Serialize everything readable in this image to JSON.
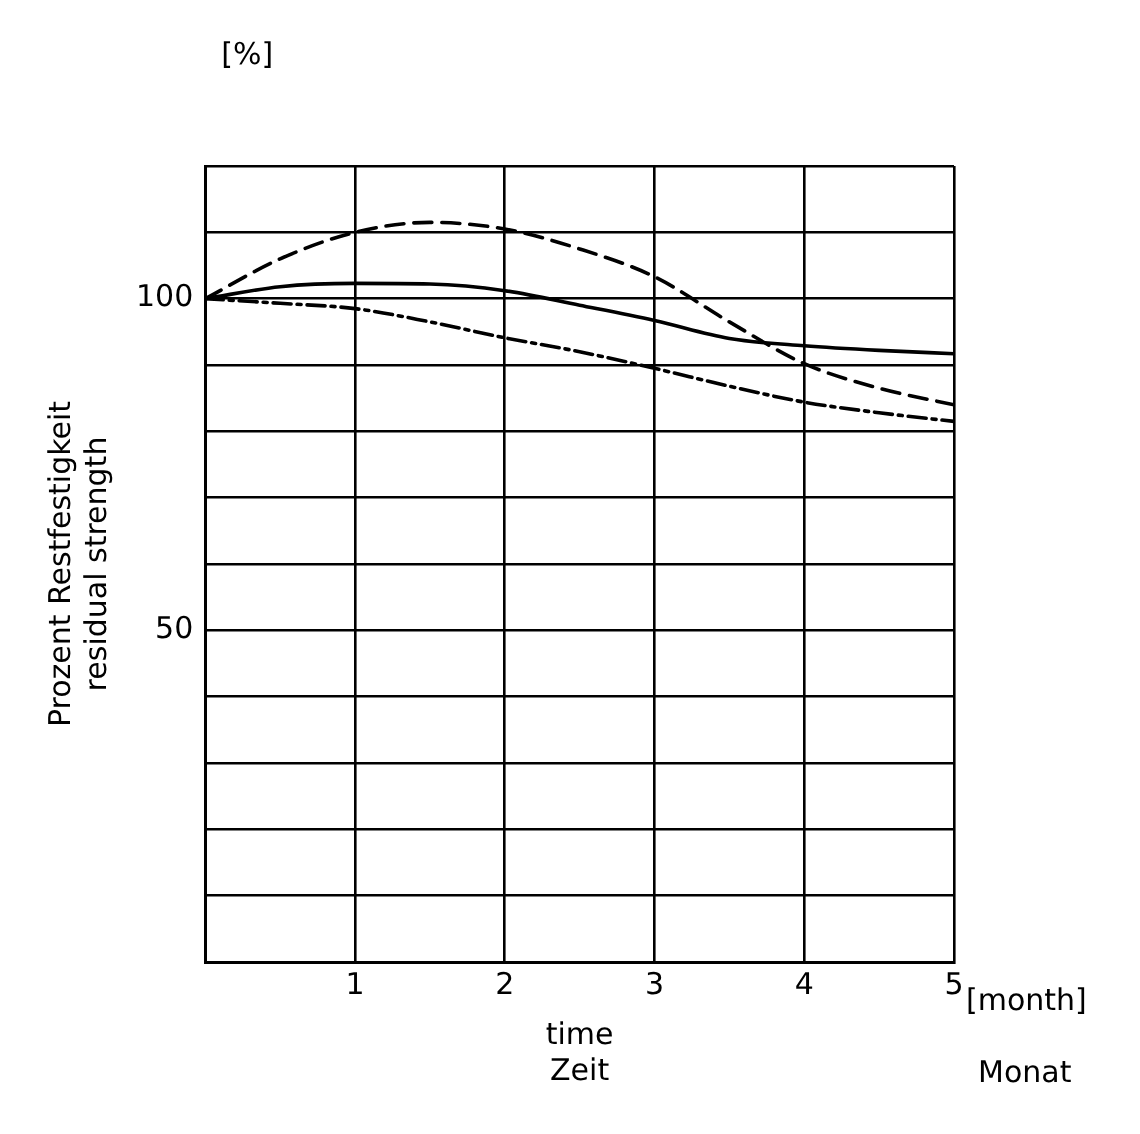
{
  "chart_data": {
    "type": "line",
    "xlabel": "time\nZeit",
    "ylabel": "Prozent Restfestigkeit\nresidual strength",
    "annotations": [
      "[%]",
      "[month]",
      "Monat"
    ],
    "x": [
      0,
      0.5,
      1,
      1.5,
      2,
      2.5,
      3,
      3.5,
      4,
      4.5,
      5
    ],
    "series": [
      {
        "color": "#000000",
        "line_style": "dashed",
        "values": [
          100,
          106,
          110,
          111.5,
          110.5,
          107.5,
          103.3,
          96.5,
          90.2,
          86.5,
          84
        ]
      },
      {
        "color": "#000000",
        "line_style": "solid",
        "values": [
          100,
          101.8,
          102.3,
          102.2,
          101.2,
          99,
          96.7,
          94,
          92.9,
          92.2,
          91.7
        ]
      },
      {
        "color": "#000000",
        "line_style": "dotted",
        "values": [
          100,
          99.3,
          98.5,
          96.5,
          94.1,
          92,
          89.5,
          86.8,
          84.4,
          82.8,
          81.5
        ]
      }
    ],
    "xlim": [
      0,
      5
    ],
    "xticks": [
      {
        "value": 0,
        "label": null
      },
      1,
      2,
      3,
      4,
      5
    ],
    "ylim": [
      0,
      120
    ],
    "yticks": [
      {
        "value": 0,
        "label": null
      },
      {
        "value": 10,
        "label": null
      },
      {
        "value": 20,
        "label": null
      },
      {
        "value": 30,
        "label": null
      },
      {
        "value": 40,
        "label": null
      },
      50,
      {
        "value": 60,
        "label": null
      },
      {
        "value": 70,
        "label": null
      },
      {
        "value": 80,
        "label": null
      },
      {
        "value": 90,
        "label": null
      },
      100,
      {
        "value": 110,
        "label": null
      },
      {
        "value": 120,
        "label": null
      }
    ],
    "grid": true,
    "legend": false,
    "marker": "none"
  }
}
